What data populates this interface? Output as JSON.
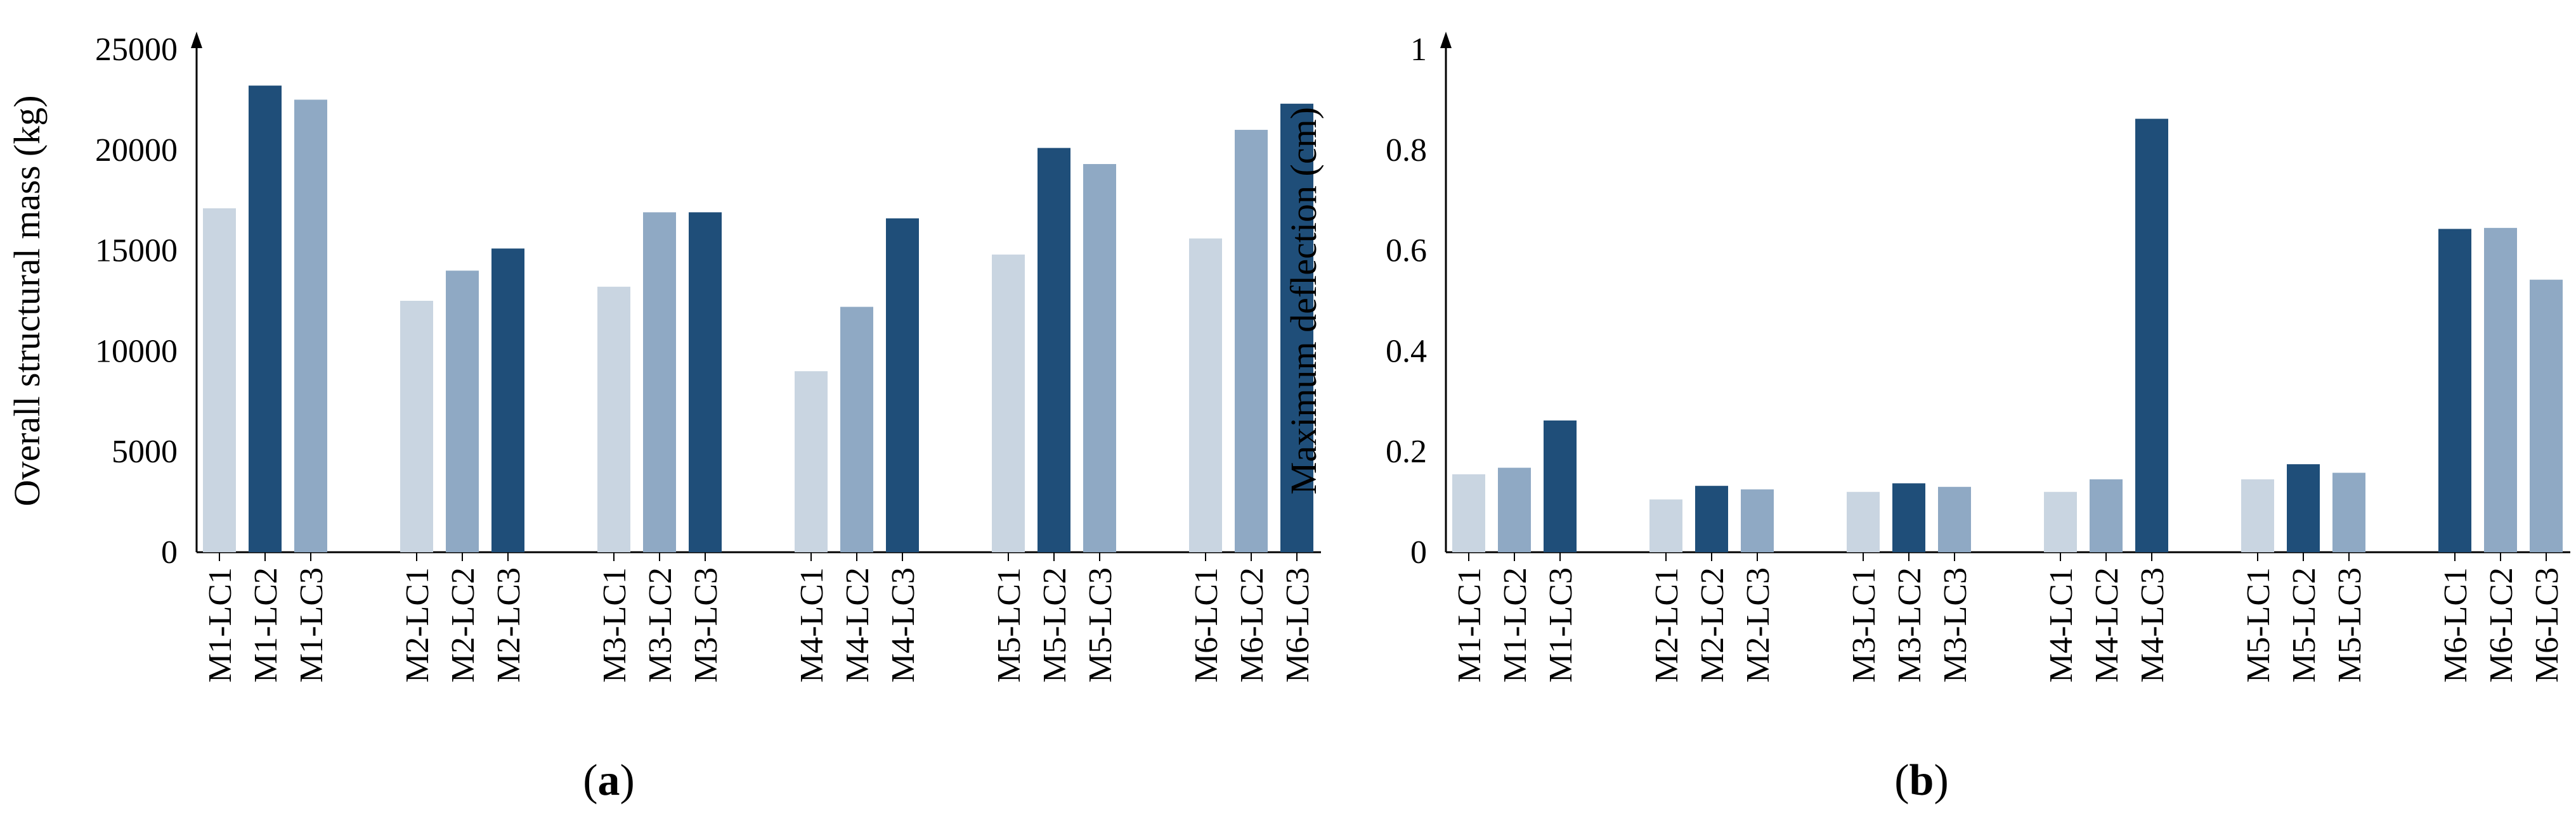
{
  "chart_data": [
    {
      "type": "bar",
      "panel_caption": "a",
      "ylabel": "Overall structural mass (kg)",
      "ylim": [
        0,
        25000
      ],
      "yticks": [
        "0",
        "5000",
        "10000",
        "15000",
        "20000",
        "25000"
      ],
      "grid": false,
      "legend": "none",
      "categories": [
        "M1-LC1",
        "M1-LC2",
        "M1-LC3",
        "M2-LC1",
        "M2-LC2",
        "M2-LC3",
        "M3-LC1",
        "M3-LC2",
        "M3-LC3",
        "M4-LC1",
        "M4-LC2",
        "M4-LC3",
        "M5-LC1",
        "M5-LC2",
        "M5-LC3",
        "M6-LC1",
        "M6-LC2",
        "M6-LC3"
      ],
      "values": [
        17100,
        23200,
        22500,
        12500,
        14000,
        15100,
        13200,
        16900,
        16900,
        9000,
        12200,
        16600,
        14800,
        20100,
        19300,
        15600,
        21000,
        22300
      ],
      "bar_colors": [
        "#c9d5e1",
        "#1f4e79",
        "#8fa9c4",
        "#c9d5e1",
        "#8fa9c4",
        "#1f4e79",
        "#c9d5e1",
        "#8fa9c4",
        "#1f4e79",
        "#c9d5e1",
        "#8fa9c4",
        "#1f4e79",
        "#c9d5e1",
        "#1f4e79",
        "#8fa9c4",
        "#c9d5e1",
        "#8fa9c4",
        "#1f4e79"
      ]
    },
    {
      "type": "bar",
      "panel_caption": "b",
      "ylabel": "Maximum deflection (cm)",
      "ylim": [
        0,
        1
      ],
      "yticks": [
        "0",
        "0.2",
        "0.4",
        "0.6",
        "0.8",
        "1"
      ],
      "grid": false,
      "legend": "none",
      "categories": [
        "M1-LC1",
        "M1-LC2",
        "M1-LC3",
        "M2-LC1",
        "M2-LC2",
        "M2-LC3",
        "M3-LC1",
        "M3-LC2",
        "M3-LC3",
        "M4-LC1",
        "M4-LC2",
        "M4-LC3",
        "M5-LC1",
        "M5-LC2",
        "M5-LC3",
        "M6-LC1",
        "M6-LC2",
        "M6-LC3"
      ],
      "values": [
        0.155,
        0.168,
        0.262,
        0.105,
        0.132,
        0.125,
        0.12,
        0.137,
        0.13,
        0.12,
        0.145,
        0.862,
        0.145,
        0.175,
        0.158,
        0.643,
        0.645,
        0.542
      ],
      "bar_colors": [
        "#c9d5e1",
        "#8fa9c4",
        "#1f4e79",
        "#c9d5e1",
        "#1f4e79",
        "#8fa9c4",
        "#c9d5e1",
        "#1f4e79",
        "#8fa9c4",
        "#c9d5e1",
        "#8fa9c4",
        "#1f4e79",
        "#c9d5e1",
        "#1f4e79",
        "#8fa9c4",
        "#1f4e79",
        "#8fa9c4",
        "#8fa9c4"
      ]
    }
  ]
}
